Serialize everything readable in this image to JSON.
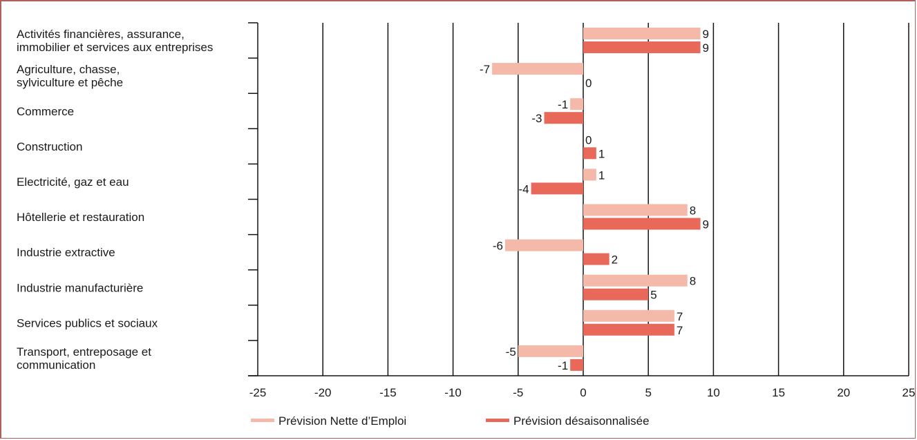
{
  "chart_data": {
    "type": "bar",
    "orientation": "horizontal",
    "categories": [
      [
        "Activités financières, assurance,",
        "immobilier et services aux entreprises"
      ],
      [
        "Agriculture, chasse,",
        "sylviculture et pêche"
      ],
      [
        "Commerce"
      ],
      [
        "Construction"
      ],
      [
        "Electricité, gaz et eau"
      ],
      [
        "Hôtellerie et restauration"
      ],
      [
        "Industrie extractive"
      ],
      [
        "Industrie manufacturière"
      ],
      [
        "Services publics et sociaux"
      ],
      [
        "Transport, entreposage et",
        "communication"
      ]
    ],
    "series": [
      {
        "name": "Prévision Nette d’Emploi",
        "color": "#f4b9a8",
        "values": [
          9,
          -7,
          -1,
          0,
          1,
          8,
          -6,
          8,
          7,
          -5
        ]
      },
      {
        "name": "Prévision désaisonnalisée",
        "color": "#e8695a",
        "values": [
          9,
          0,
          -3,
          1,
          -4,
          9,
          2,
          5,
          7,
          -1
        ]
      }
    ],
    "xlim": [
      -25,
      25
    ],
    "xticks": [
      -25,
      -20,
      -15,
      -10,
      -5,
      0,
      5,
      10,
      15,
      20,
      25
    ],
    "grid": true,
    "legend_position": "bottom",
    "title": "",
    "xlabel": "",
    "ylabel": ""
  }
}
